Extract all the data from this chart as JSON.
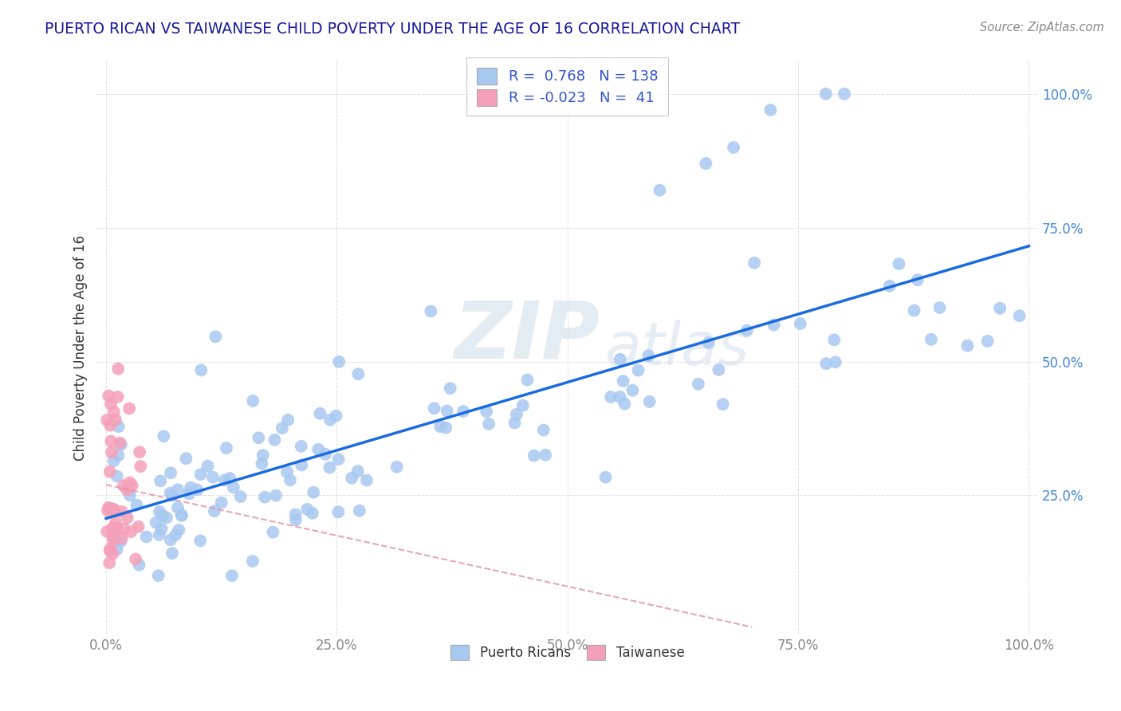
{
  "title": "PUERTO RICAN VS TAIWANESE CHILD POVERTY UNDER THE AGE OF 16 CORRELATION CHART",
  "source": "Source: ZipAtlas.com",
  "ylabel": "Child Poverty Under the Age of 16",
  "pr_color": "#a8c8f0",
  "tw_color": "#f4a0b8",
  "line_pr_color": "#1a6be0",
  "line_tw_color": "#e090a8",
  "background_color": "#ffffff",
  "grid_color": "#cccccc",
  "watermark_zip": "ZIP",
  "watermark_atlas": "atlas",
  "title_color": "#1a1a9c",
  "ytick_color": "#4488dd",
  "xtick_color": "#888888",
  "source_color": "#888888",
  "ylabel_color": "#333333",
  "legend_text_color": "#333333",
  "legend_value_color": "#3355cc",
  "pr_line_intercept": 0.195,
  "pr_line_slope": 0.47,
  "tw_line_intercept": 0.32,
  "tw_line_slope": -0.28
}
